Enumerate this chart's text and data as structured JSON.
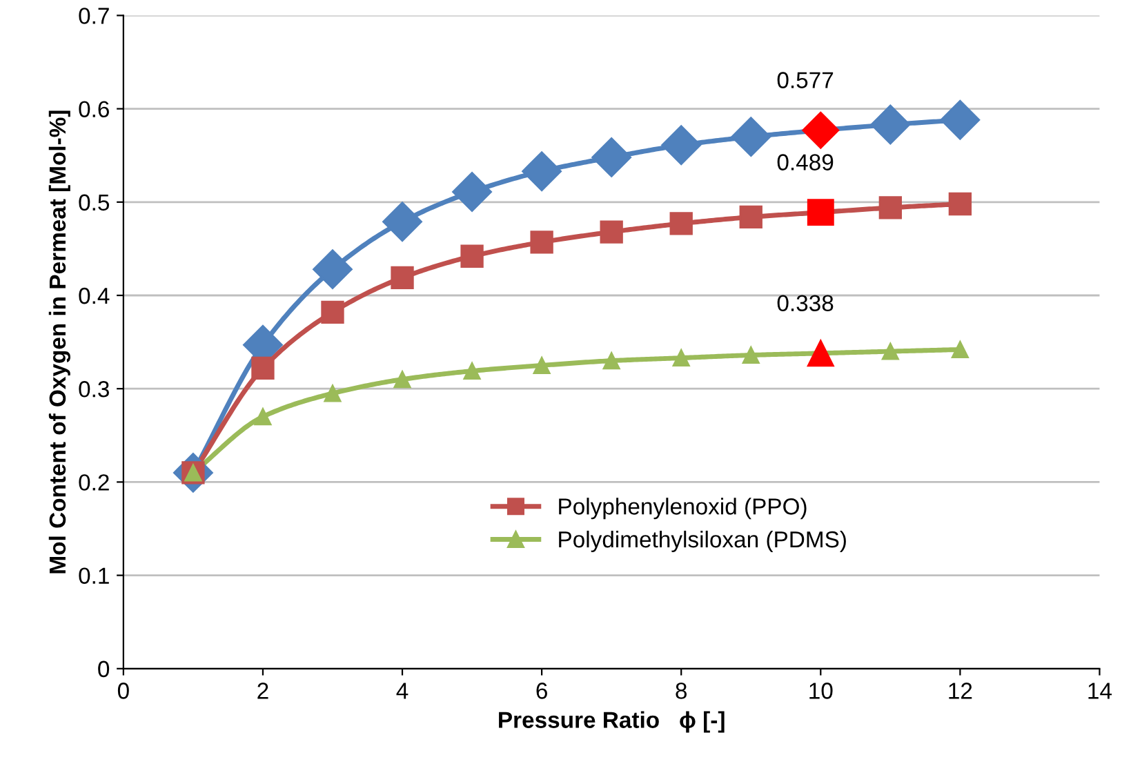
{
  "chart_data": {
    "type": "line",
    "xlabel": "Pressure Ratio   ϕ [-]",
    "ylabel": "Mol Content of Oxygen in Permeat [Mol-%]",
    "x": [
      1,
      2,
      3,
      4,
      5,
      6,
      7,
      8,
      9,
      10,
      11,
      12
    ],
    "series": [
      {
        "color": "#4f81bd",
        "marker": "diamond",
        "colors": [
          "#4f81bd",
          "#4f81bd",
          "#4f81bd",
          "#4f81bd",
          "#4f81bd",
          "#4f81bd",
          "#4f81bd",
          "#4f81bd",
          "#4f81bd",
          "#ff0000",
          "#4f81bd",
          "#4f81bd"
        ],
        "values": [
          0.21,
          0.347,
          0.428,
          0.479,
          0.511,
          0.533,
          0.548,
          0.561,
          0.57,
          0.577,
          0.583,
          0.588
        ],
        "value_labels": [
          null,
          null,
          null,
          null,
          null,
          null,
          null,
          null,
          null,
          "0.577",
          null,
          null
        ]
      },
      {
        "name": "Polyphenylenoxid (PPO)",
        "color": "#c0504d",
        "marker": "square",
        "colors": [
          "#c0504d",
          "#c0504d",
          "#c0504d",
          "#c0504d",
          "#c0504d",
          "#c0504d",
          "#c0504d",
          "#c0504d",
          "#c0504d",
          "#ff0000",
          "#c0504d",
          "#c0504d"
        ],
        "values": [
          0.21,
          0.322,
          0.382,
          0.419,
          0.442,
          0.457,
          0.468,
          0.477,
          0.484,
          0.489,
          0.494,
          0.498
        ],
        "value_labels": [
          null,
          null,
          null,
          null,
          null,
          null,
          null,
          null,
          null,
          "0.489",
          null,
          null
        ]
      },
      {
        "name": "Polydimethylsiloxan (PDMS)",
        "color": "#9bbb59",
        "marker": "triangle",
        "colors": [
          "#9bbb59",
          "#9bbb59",
          "#9bbb59",
          "#9bbb59",
          "#9bbb59",
          "#9bbb59",
          "#9bbb59",
          "#9bbb59",
          "#9bbb59",
          "#ff0000",
          "#9bbb59",
          "#9bbb59"
        ],
        "values": [
          0.21,
          0.27,
          0.295,
          0.31,
          0.319,
          0.325,
          0.33,
          0.333,
          0.336,
          0.338,
          0.34,
          0.342
        ],
        "value_labels": [
          null,
          null,
          null,
          null,
          null,
          null,
          null,
          null,
          null,
          "0.338",
          null,
          null
        ]
      }
    ],
    "xlim": [
      0,
      14
    ],
    "xticks": [
      0,
      2,
      4,
      6,
      8,
      10,
      12,
      14
    ],
    "ylim": [
      0,
      0.7
    ],
    "yticks": [
      0,
      0.1,
      0.2,
      0.3,
      0.4,
      0.5,
      0.6,
      0.7
    ],
    "grid": "y",
    "legend": "center"
  }
}
